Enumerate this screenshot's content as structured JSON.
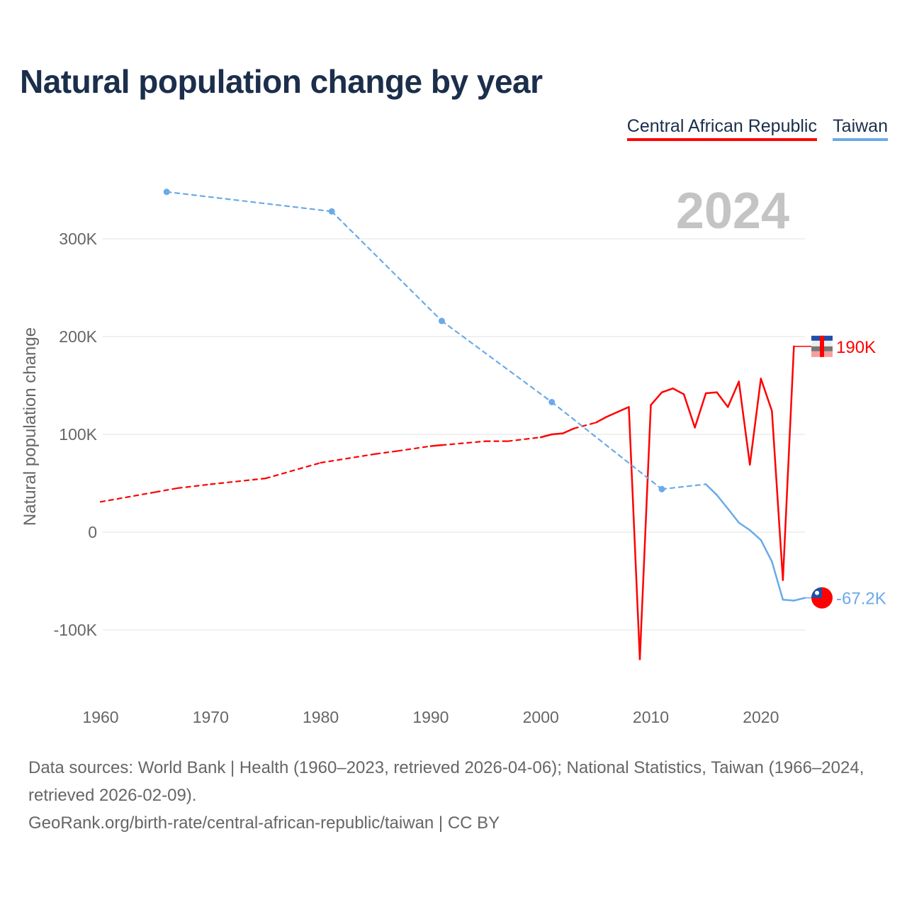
{
  "chart_data": {
    "type": "line",
    "title": "Natural population change by year",
    "ylabel": "Natural population change",
    "xlabel": "",
    "xlim": [
      1960,
      2024
    ],
    "ylim": [
      -150000,
      360000
    ],
    "x_ticks": [
      1960,
      1970,
      1980,
      1990,
      2000,
      2010,
      2020
    ],
    "x_tick_labels": [
      "1960",
      "1970",
      "1980",
      "1990",
      "2000",
      "2010",
      "2020"
    ],
    "y_ticks": [
      -100000,
      0,
      100000,
      200000,
      300000
    ],
    "y_tick_labels": [
      "-100K",
      "0",
      "100K",
      "200K",
      "300K"
    ],
    "grid": true,
    "legend_position": "top-right",
    "year_overlay": "2024",
    "series": [
      {
        "name": "Central African Republic",
        "color": "#ff0000",
        "end_label": "190K",
        "x": [
          1960,
          1965,
          1967,
          1970,
          1975,
          1980,
          1985,
          1987,
          1990,
          1991,
          1995,
          1997,
          2000,
          2001,
          2002,
          2003,
          2005,
          2006,
          2007,
          2008,
          2009,
          2010,
          2011,
          2012,
          2013,
          2014,
          2015,
          2016,
          2017,
          2018,
          2019,
          2020,
          2021,
          2022,
          2023
        ],
        "y": [
          31000,
          41000,
          45000,
          49000,
          55000,
          71000,
          80000,
          83000,
          88000,
          89000,
          93000,
          93000,
          97000,
          100000,
          101000,
          106000,
          112000,
          118000,
          123000,
          128000,
          -130000,
          130000,
          143000,
          147000,
          141000,
          107000,
          142000,
          143000,
          128000,
          154000,
          69000,
          157000,
          124000,
          -49000,
          190000
        ]
      },
      {
        "name": "Taiwan",
        "color": "#6aaae8",
        "end_label": "-67.2K",
        "x": [
          1966,
          1981,
          1991,
          2001,
          2011,
          2015,
          2016,
          2017,
          2018,
          2019,
          2020,
          2021,
          2022,
          2023,
          2024
        ],
        "y": [
          348000,
          328000,
          216000,
          133000,
          44000,
          49000,
          38000,
          24000,
          9700,
          2000,
          -8000,
          -30000,
          -69000,
          -70000,
          -67200
        ],
        "marked_points": [
          1966,
          1981,
          1991,
          2001,
          2011
        ]
      }
    ]
  },
  "footer": {
    "sources": "Data sources: World Bank | Health (1960–2023, retrieved 2026-04-06); National Statistics, Taiwan (1966–2024, retrieved 2026-02-09).",
    "link": "GeoRank.org/birth-rate/central-african-republic/taiwan | CC BY"
  }
}
